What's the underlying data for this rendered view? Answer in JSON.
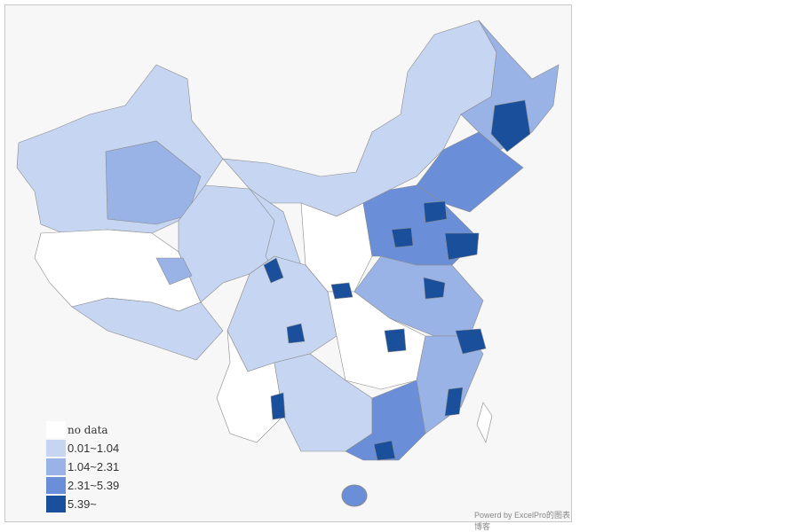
{
  "legend": {
    "items": [
      {
        "label": "no data",
        "color": "#ffffff"
      },
      {
        "label": "0.01~1.04",
        "color": "#c6d6f2"
      },
      {
        "label": "1.04~2.31",
        "color": "#9ab3e6"
      },
      {
        "label": "2.31~5.39",
        "color": "#6a8fd8"
      },
      {
        "label": "5.39~",
        "color": "#1a4f9c"
      }
    ]
  },
  "footer": "Powerd by ExcelPro的图表博客"
}
